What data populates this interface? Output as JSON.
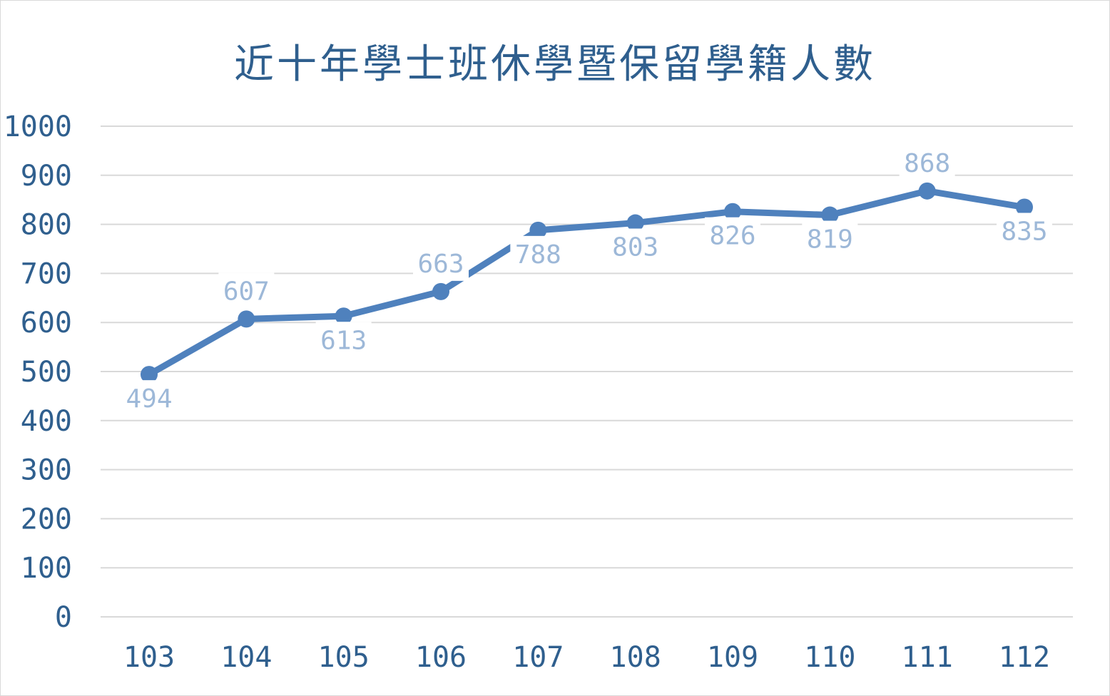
{
  "chart_data": {
    "type": "line",
    "title": "近十年學士班休學暨保留學籍人數",
    "categories": [
      "103",
      "104",
      "105",
      "106",
      "107",
      "108",
      "109",
      "110",
      "111",
      "112"
    ],
    "series": [
      {
        "values": [
          494,
          607,
          613,
          663,
          788,
          803,
          826,
          819,
          868,
          835
        ]
      }
    ],
    "data_labels": [
      "494",
      "607",
      "613",
      "663",
      "788",
      "803",
      "826",
      "819",
      "868",
      "835"
    ],
    "y_ticks": [
      "0",
      "100",
      "200",
      "300",
      "400",
      "500",
      "600",
      "700",
      "800",
      "900",
      "1000"
    ],
    "ylim": [
      0,
      1000
    ],
    "grid": true,
    "legend": "none",
    "colors": {
      "line": "#4f81bd",
      "grid": "#d9d9d9",
      "axis_text": "#2f5f8e",
      "label_text": "#9db8d8"
    }
  }
}
